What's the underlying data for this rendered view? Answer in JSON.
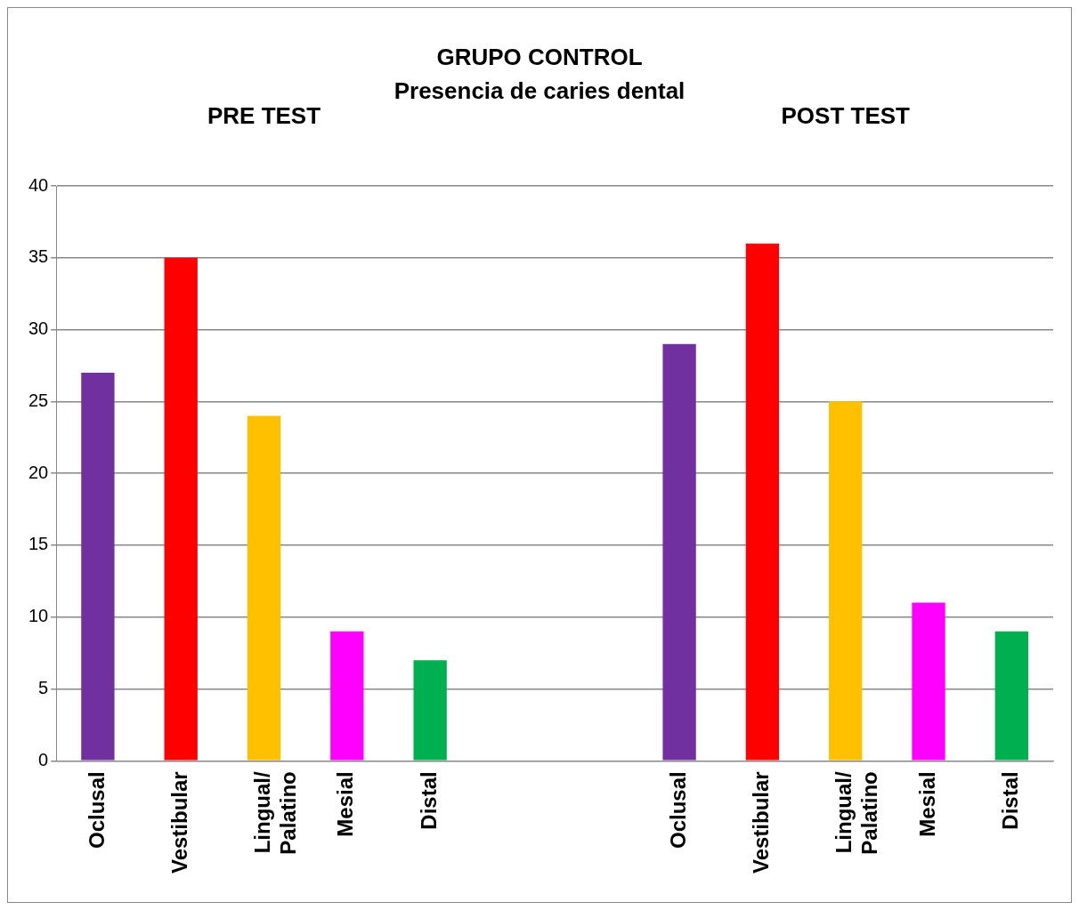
{
  "chart_data": {
    "type": "bar",
    "title": "GRUPO CONTROL",
    "subtitle": "Presencia de caries dental",
    "annotations": [
      "PRE TEST",
      "POST TEST"
    ],
    "categories": [
      "Oclusal",
      "Vestibular",
      "Lingual/ Palatino",
      "Mesial",
      "Distal",
      null,
      null,
      "Oclusal",
      "Vestibular",
      "Lingual/ Palatino",
      "Mesial",
      "Distal"
    ],
    "values": [
      27,
      35,
      24,
      9,
      7,
      null,
      null,
      29,
      36,
      25,
      11,
      9
    ],
    "colors": [
      "#7030a0",
      "#ff0000",
      "#ffc000",
      "#ff00ff",
      "#00b050",
      "#ffffff",
      "#ffffff",
      "#7030a0",
      "#ff0000",
      "#ffc000",
      "#ff00ff",
      "#00b050"
    ],
    "ylim": [
      0,
      40
    ],
    "yticks": [
      0,
      5,
      10,
      15,
      20,
      25,
      30,
      35,
      40
    ],
    "grid": "y",
    "legend": false
  }
}
